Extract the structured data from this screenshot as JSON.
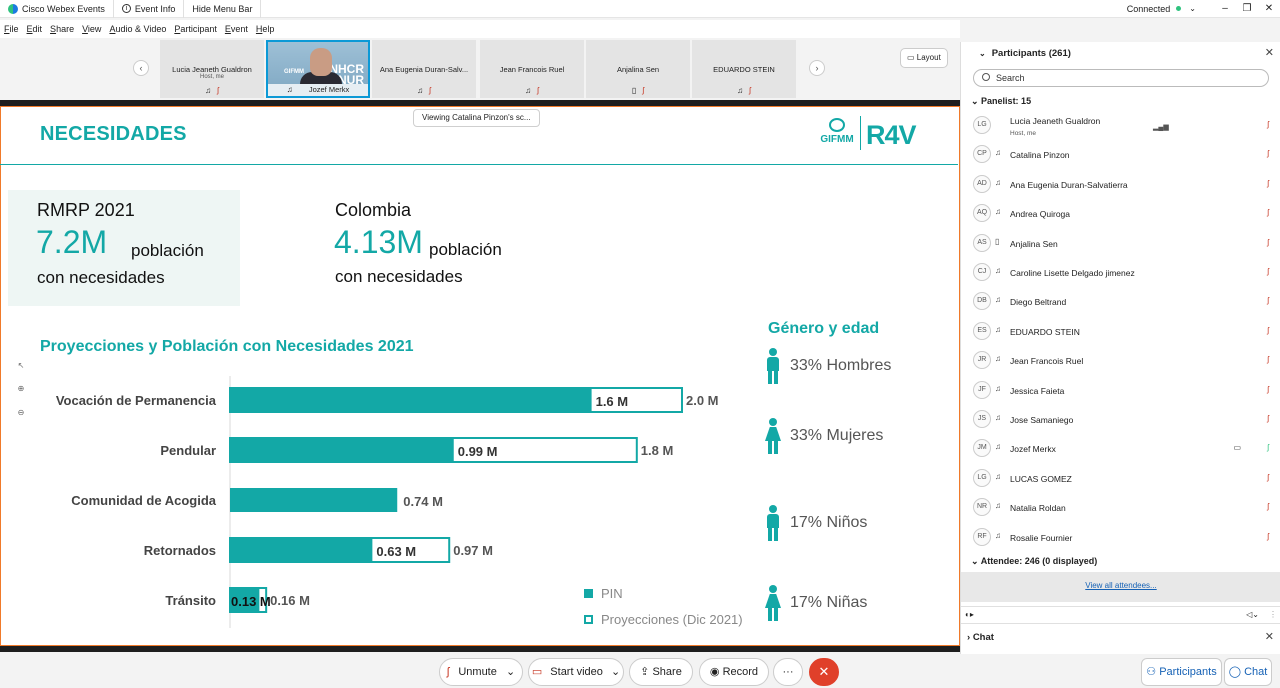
{
  "titlebar": {
    "app_name": "Cisco Webex Events",
    "event_info": "Event Info",
    "hide_menu": "Hide Menu Bar",
    "status": "Connected"
  },
  "menu": [
    "File",
    "Edit",
    "Share",
    "View",
    "Audio & Video",
    "Participant",
    "Event",
    "Help"
  ],
  "thumbnails": [
    {
      "name": "Lucia Jeaneth Gualdron",
      "sub": "Host, me"
    },
    {
      "name": "Jozef Merkx",
      "banner": "UNHCR\nACNUR",
      "tag": "GIFMM"
    },
    {
      "name": "Ana Eugenia Duran-Salv..."
    },
    {
      "name": "Jean Francois Ruel"
    },
    {
      "name": "Anjalina Sen"
    },
    {
      "name": "EDUARDO STEIN"
    }
  ],
  "layout_label": "Layout",
  "viewing_label": "Viewing Catalina Pinzon's sc...",
  "slide": {
    "title": "NECESIDADES",
    "logo_gifmm": "GIFMM",
    "logo_r4v": "R4V",
    "rmrp": {
      "label": "RMRP 2021",
      "value": "7.2M",
      "word": "población",
      "desc": "con necesidades"
    },
    "colombia": {
      "label": "Colombia",
      "value": "4.13M",
      "word": "población",
      "desc": "con necesidades"
    },
    "chart_title": "Proyecciones y Población con Necesidades 2021",
    "gender_title": "Género y edad",
    "gender": [
      {
        "label": "33% Hombres",
        "icon": "male-icon"
      },
      {
        "label": "33% Mujeres",
        "icon": "female-icon"
      },
      {
        "label": "17% Niños",
        "icon": "boy-icon"
      },
      {
        "label": "17% Niñas",
        "icon": "girl-icon"
      }
    ],
    "legend": {
      "pin": "PIN",
      "proj": "Proyecciones (Dic 2021)"
    }
  },
  "chart_data": {
    "type": "bar",
    "orientation": "horizontal",
    "title": "Proyecciones y Población con Necesidades 2021",
    "categories": [
      "Vocación de Permanencia",
      "Pendular",
      "Comunidad de Acogida",
      "Retornados",
      "Tránsito"
    ],
    "series": [
      {
        "name": "PIN",
        "values": [
          1.6,
          0.99,
          0.74,
          0.63,
          0.13
        ],
        "labels": [
          "1.6 M",
          "0.99 M",
          "0.74 M",
          "0.63 M",
          "0.13 M"
        ]
      },
      {
        "name": "Proyecciones (Dic 2021)",
        "values": [
          2.0,
          1.8,
          null,
          0.97,
          0.16
        ],
        "labels": [
          "2.0 M",
          "1.8 M",
          "",
          "0.97 M",
          "0.16 M"
        ]
      }
    ],
    "colors": {
      "pin": "#13a8a6",
      "proj_border": "#13a8a6"
    },
    "xlim": [
      0,
      2.0
    ],
    "legend_position": "bottom-right"
  },
  "toolbar": {
    "unmute": "Unmute",
    "start_video": "Start video",
    "share": "Share",
    "record": "Record",
    "more": "···",
    "end": "✕",
    "participants": "Participants",
    "chat": "Chat"
  },
  "panel": {
    "title": "Participants (261)",
    "search_placeholder": "Search",
    "panelist_head": "Panelist: 15",
    "attendee_head": "Attendee: 246 (0 displayed)",
    "view_all": "View all attendees...",
    "chat_title": "Chat",
    "participants": [
      {
        "initials": "LG",
        "name": "Lucia Jeaneth Gualdron",
        "sub": "Host, me",
        "device": "",
        "mic": "off",
        "bars": true
      },
      {
        "initials": "CP",
        "name": "Catalina Pinzon",
        "device": "headset",
        "mic": "off"
      },
      {
        "initials": "AD",
        "name": "Ana Eugenia Duran-Salvatierra",
        "device": "headset",
        "mic": "off"
      },
      {
        "initials": "AQ",
        "name": "Andrea Quiroga",
        "device": "headset",
        "mic": "off"
      },
      {
        "initials": "AS",
        "name": "Anjalina Sen",
        "device": "phone",
        "mic": "off"
      },
      {
        "initials": "CJ",
        "name": "Caroline Lisette Delgado jimenez",
        "device": "headset",
        "mic": "off"
      },
      {
        "initials": "DB",
        "name": "Diego Beltrand",
        "device": "headset",
        "mic": "off"
      },
      {
        "initials": "ES",
        "name": "EDUARDO STEIN",
        "device": "headset",
        "mic": "off"
      },
      {
        "initials": "JR",
        "name": "Jean Francois Ruel",
        "device": "headset",
        "mic": "off"
      },
      {
        "initials": "JF",
        "name": "Jessica Faieta",
        "device": "headset",
        "mic": "off"
      },
      {
        "initials": "JS",
        "name": "Jose Samaniego",
        "device": "headset",
        "mic": "off"
      },
      {
        "initials": "JM",
        "name": "Jozef Merkx",
        "device": "headset",
        "mic": "on",
        "video": true
      },
      {
        "initials": "LG",
        "name": "LUCAS GOMEZ",
        "device": "headset",
        "mic": "off"
      },
      {
        "initials": "NR",
        "name": "Natalia Roldan",
        "device": "headset",
        "mic": "off"
      },
      {
        "initials": "RF",
        "name": "Rosalie Fournier",
        "device": "headset",
        "mic": "off"
      }
    ]
  }
}
